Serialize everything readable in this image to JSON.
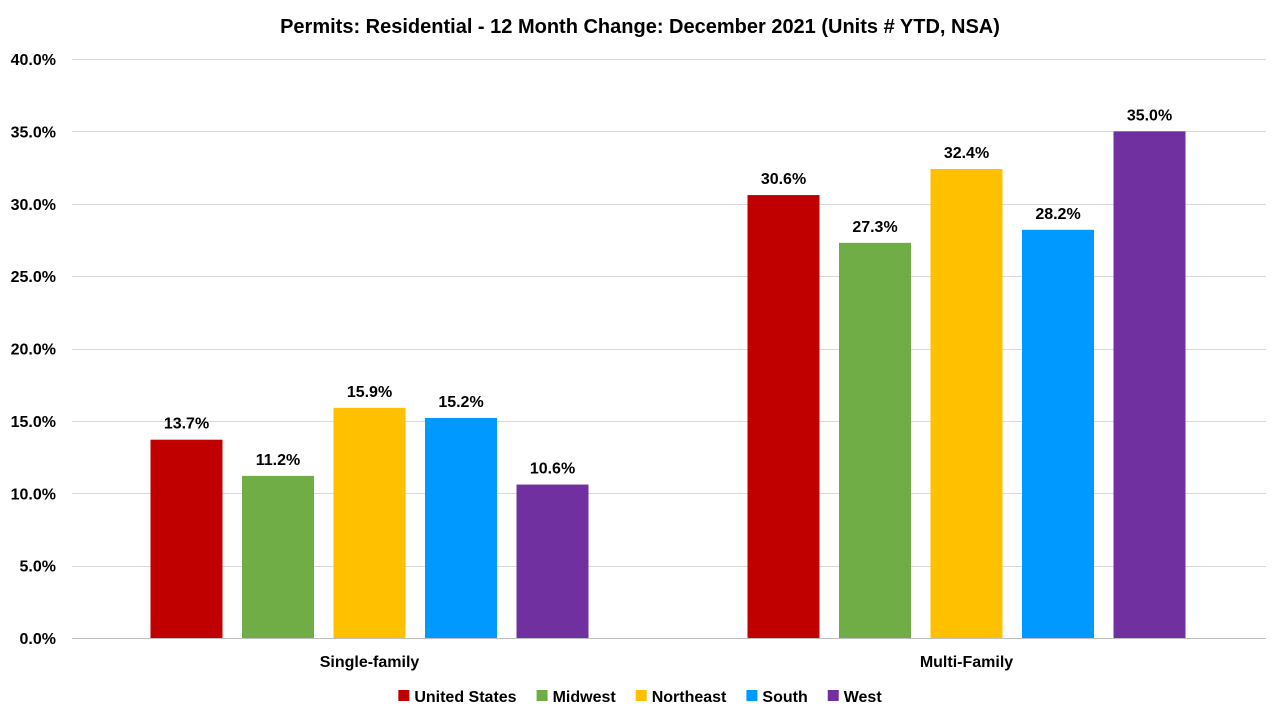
{
  "chart_data": {
    "type": "bar",
    "title": "Permits: Residential - 12 Month Change: December 2021 (Units # YTD, NSA)",
    "xlabel": "",
    "ylabel": "",
    "categories": [
      "Single-family",
      "Multi-Family"
    ],
    "series": [
      {
        "name": "United States",
        "color": "#C00000",
        "values": [
          13.7,
          30.6
        ],
        "labels": [
          "13.7%",
          "30.6%"
        ]
      },
      {
        "name": "Midwest",
        "color": "#70AD47",
        "values": [
          11.2,
          27.3
        ],
        "labels": [
          "11.2%",
          "27.3%"
        ]
      },
      {
        "name": "Northeast",
        "color": "#FFC000",
        "values": [
          15.9,
          32.4
        ],
        "labels": [
          "15.9%",
          "32.4%"
        ]
      },
      {
        "name": "South",
        "color": "#0099FF",
        "values": [
          15.2,
          28.2
        ],
        "labels": [
          "15.2%",
          "28.2%"
        ]
      },
      {
        "name": "West",
        "color": "#7030A0",
        "values": [
          10.6,
          35.0
        ],
        "labels": [
          "10.6%",
          "35.0%"
        ]
      }
    ],
    "ylim": [
      0,
      40
    ],
    "yticks": [
      0,
      5,
      10,
      15,
      20,
      25,
      30,
      35,
      40
    ],
    "ytick_labels": [
      "0.0%",
      "5.0%",
      "10.0%",
      "15.0%",
      "20.0%",
      "25.0%",
      "30.0%",
      "35.0%",
      "40.0%"
    ],
    "grid": true,
    "legend": "bottom"
  }
}
